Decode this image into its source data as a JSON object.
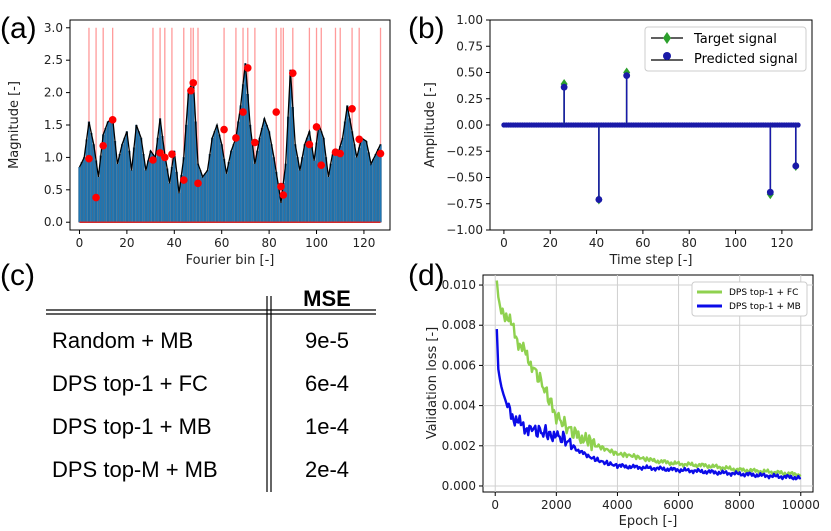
{
  "panels": {
    "a": "(a)",
    "b": "(b)",
    "c": "(c)",
    "d": "(d)"
  },
  "chart_data": [
    {
      "panel": "a",
      "type": "bar",
      "xlabel": "Fourier bin [-]",
      "ylabel": "Magnitude [-]",
      "xlim": [
        -4,
        131
      ],
      "ylim": [
        -0.12,
        3.12
      ],
      "xticks": [
        0,
        20,
        40,
        60,
        80,
        100,
        120
      ],
      "yticks": [
        0.0,
        0.5,
        1.0,
        1.5,
        2.0,
        2.5,
        3.0
      ],
      "bar_anchors": [
        [
          0,
          0.85
        ],
        [
          2,
          1.0
        ],
        [
          4,
          1.55
        ],
        [
          6,
          1.2
        ],
        [
          8,
          0.7
        ],
        [
          10,
          1.35
        ],
        [
          12,
          1.55
        ],
        [
          14,
          1.6
        ],
        [
          16,
          0.9
        ],
        [
          18,
          1.2
        ],
        [
          20,
          1.4
        ],
        [
          22,
          0.8
        ],
        [
          24,
          1.5
        ],
        [
          26,
          1.3
        ],
        [
          28,
          0.8
        ],
        [
          30,
          1.1
        ],
        [
          32,
          1.0
        ],
        [
          34,
          1.6
        ],
        [
          36,
          1.05
        ],
        [
          38,
          0.6
        ],
        [
          40,
          1.1
        ],
        [
          42,
          0.45
        ],
        [
          44,
          1.0
        ],
        [
          46,
          2.0
        ],
        [
          48,
          2.2
        ],
        [
          50,
          0.9
        ],
        [
          52,
          0.7
        ],
        [
          54,
          0.8
        ],
        [
          56,
          1.3
        ],
        [
          58,
          1.5
        ],
        [
          60,
          1.2
        ],
        [
          62,
          0.75
        ],
        [
          64,
          1.1
        ],
        [
          66,
          1.3
        ],
        [
          68,
          1.8
        ],
        [
          70,
          2.45
        ],
        [
          72,
          1.5
        ],
        [
          74,
          0.9
        ],
        [
          76,
          1.3
        ],
        [
          78,
          1.6
        ],
        [
          80,
          1.4
        ],
        [
          82,
          1.0
        ],
        [
          84,
          0.55
        ],
        [
          85,
          0.3
        ],
        [
          87,
          0.9
        ],
        [
          89,
          2.35
        ],
        [
          91,
          1.2
        ],
        [
          93,
          0.8
        ],
        [
          95,
          1.2
        ],
        [
          97,
          1.4
        ],
        [
          99,
          0.95
        ],
        [
          101,
          1.5
        ],
        [
          103,
          1.3
        ],
        [
          105,
          0.7
        ],
        [
          107,
          1.1
        ],
        [
          109,
          1.05
        ],
        [
          111,
          1.3
        ],
        [
          113,
          1.8
        ],
        [
          115,
          1.4
        ],
        [
          117,
          1.0
        ],
        [
          119,
          1.3
        ],
        [
          121,
          1.25
        ],
        [
          123,
          0.9
        ],
        [
          125,
          1.05
        ],
        [
          127,
          1.2
        ]
      ],
      "selected_bins": [
        4,
        7,
        10,
        14,
        31,
        34,
        36,
        39,
        44,
        47,
        48,
        50,
        61,
        66,
        69,
        71,
        74,
        83,
        85,
        86,
        90,
        97,
        100,
        102,
        108,
        110,
        115,
        118,
        127
      ],
      "selected_magnitudes": [
        0.98,
        0.38,
        1.18,
        1.58,
        0.96,
        1.07,
        1.0,
        1.05,
        0.65,
        2.03,
        2.15,
        0.6,
        1.43,
        1.3,
        1.7,
        2.38,
        1.23,
        1.7,
        0.55,
        0.42,
        2.3,
        1.2,
        1.47,
        0.88,
        1.08,
        1.06,
        1.75,
        1.28,
        1.06
      ],
      "colors": {
        "bar": "#1f77b4",
        "envelope": "#000000",
        "marker": "#ff0000",
        "selection_line": "#ff9a9a",
        "baseline": "#d62728"
      }
    },
    {
      "panel": "b",
      "type": "line",
      "xlabel": "Time step [-]",
      "ylabel": "Amplitude [-]",
      "xlim": [
        -6,
        133
      ],
      "ylim": [
        -1.0,
        1.0
      ],
      "xticks": [
        0,
        20,
        40,
        60,
        80,
        100,
        120
      ],
      "yticks": [
        -1.0,
        -0.75,
        -0.5,
        -0.25,
        0.0,
        0.25,
        0.5,
        0.75,
        1.0
      ],
      "series": [
        {
          "name": "Target signal",
          "spikes": [
            [
              26,
              0.39
            ],
            [
              41,
              -0.71
            ],
            [
              53,
              0.5
            ],
            [
              115,
              -0.66
            ],
            [
              126,
              -0.39
            ]
          ],
          "color": "#2ca02c"
        },
        {
          "name": "Predicted signal",
          "spikes": [
            [
              26,
              0.36
            ],
            [
              41,
              -0.71
            ],
            [
              53,
              0.47
            ],
            [
              115,
              -0.64
            ],
            [
              126,
              -0.39
            ]
          ],
          "color": "#1a1aa8"
        }
      ],
      "legend": "top-right"
    },
    {
      "panel": "c",
      "type": "table",
      "header": [
        "",
        "MSE"
      ],
      "rows": [
        [
          "Random + MB",
          "9e-5"
        ],
        [
          "DPS top-1 + FC",
          "6e-4"
        ],
        [
          "DPS top-1 + MB",
          "1e-4"
        ],
        [
          "DPS top-M + MB",
          "2e-4"
        ]
      ]
    },
    {
      "panel": "d",
      "type": "line",
      "xlabel": "Epoch [-]",
      "ylabel": "Validation loss [-]",
      "xlim": [
        -400,
        10400
      ],
      "ylim": [
        -0.0003,
        0.0105
      ],
      "xticks": [
        0,
        2000,
        4000,
        6000,
        8000,
        10000
      ],
      "yticks": [
        0.0,
        0.002,
        0.004,
        0.006,
        0.008,
        0.01
      ],
      "ytick_labels": [
        "0.000",
        "0.002",
        "0.004",
        "0.006",
        "0.008",
        "0.010"
      ],
      "series": [
        {
          "name": "DPS top-1 + FC",
          "color": "#8fd14f",
          "x": [
            50,
            100,
            200,
            400,
            600,
            800,
            1000,
            1200,
            1500,
            1800,
            2000,
            2300,
            2600,
            3000,
            3500,
            4000,
            4500,
            5000,
            6000,
            7000,
            8000,
            9000,
            10000
          ],
          "y": [
            0.0102,
            0.0094,
            0.0088,
            0.0084,
            0.0078,
            0.007,
            0.0066,
            0.006,
            0.0052,
            0.0042,
            0.0035,
            0.003,
            0.0026,
            0.0023,
            0.0019,
            0.0016,
            0.0015,
            0.0013,
            0.0011,
            0.001,
            0.0008,
            0.0007,
            0.00055
          ]
        },
        {
          "name": "DPS top-1 + MB",
          "color": "#0b0be8",
          "x": [
            50,
            100,
            200,
            300,
            400,
            600,
            800,
            1000,
            1200,
            1500,
            1800,
            2000,
            2300,
            2600,
            3000,
            3500,
            4000,
            5000,
            6000,
            7000,
            8000,
            9000,
            10000
          ],
          "y": [
            0.0076,
            0.0058,
            0.0052,
            0.0046,
            0.004,
            0.0034,
            0.0031,
            0.0029,
            0.0028,
            0.0027,
            0.0026,
            0.0025,
            0.0023,
            0.0019,
            0.0015,
            0.0012,
            0.001,
            0.0009,
            0.0008,
            0.0007,
            0.0006,
            0.0005,
            0.0004
          ]
        }
      ],
      "legend": "top-right"
    }
  ]
}
